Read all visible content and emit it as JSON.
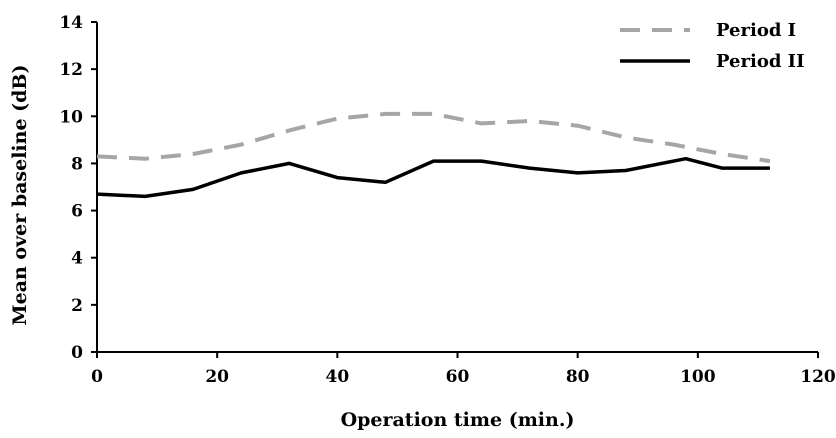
{
  "chart_data": {
    "type": "line",
    "xlabel": "Operation time (min.)",
    "ylabel": "Mean over baseline (dB)",
    "xlim": [
      0,
      120
    ],
    "ylim": [
      0,
      14
    ],
    "xticks": [
      0,
      20,
      40,
      60,
      80,
      100,
      120
    ],
    "yticks": [
      0,
      2,
      4,
      6,
      8,
      10,
      12,
      14
    ],
    "grid": false,
    "legend_position": "top-right",
    "series": [
      {
        "name": "Period I",
        "style": "dashed",
        "color": "#a6a6a6",
        "x": [
          0,
          8,
          16,
          24,
          32,
          40,
          48,
          56,
          64,
          72,
          80,
          88,
          96,
          104,
          112
        ],
        "y": [
          8.3,
          8.2,
          8.4,
          8.8,
          9.4,
          9.9,
          10.1,
          10.1,
          9.7,
          9.8,
          9.6,
          9.1,
          8.8,
          8.4,
          8.1
        ]
      },
      {
        "name": "Period II",
        "style": "solid",
        "color": "#000000",
        "x": [
          0,
          8,
          16,
          24,
          32,
          40,
          48,
          56,
          64,
          72,
          80,
          88,
          98,
          104,
          112
        ],
        "y": [
          6.7,
          6.6,
          6.9,
          7.6,
          8.0,
          7.4,
          7.2,
          8.1,
          8.1,
          7.8,
          7.6,
          7.7,
          8.2,
          7.8,
          7.8
        ]
      }
    ]
  }
}
